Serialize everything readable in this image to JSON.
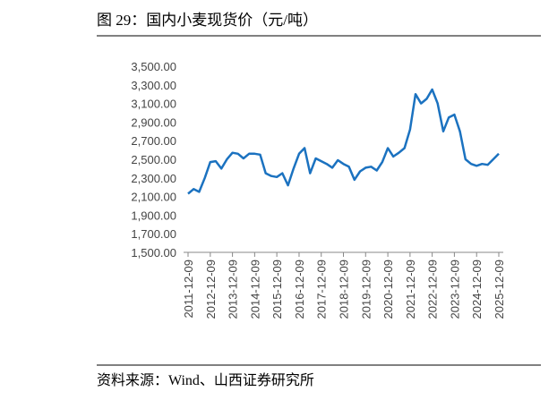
{
  "chart_data": {
    "type": "line",
    "title": "图 29：国内小麦现货价（元/吨）",
    "source": "资料来源：Wind、山西证券研究所",
    "x": [
      "2011-12-09",
      "2012-03-09",
      "2012-06-09",
      "2012-09-09",
      "2012-12-09",
      "2013-03-09",
      "2013-06-09",
      "2013-09-09",
      "2013-12-09",
      "2014-03-09",
      "2014-06-09",
      "2014-09-09",
      "2014-12-09",
      "2015-03-09",
      "2015-06-09",
      "2015-09-09",
      "2015-12-09",
      "2016-03-09",
      "2016-06-09",
      "2016-09-09",
      "2016-12-09",
      "2017-03-09",
      "2017-06-09",
      "2017-09-09",
      "2017-12-09",
      "2018-03-09",
      "2018-06-09",
      "2018-09-09",
      "2018-12-09",
      "2019-03-09",
      "2019-06-09",
      "2019-09-09",
      "2019-12-09",
      "2020-03-09",
      "2020-06-09",
      "2020-09-09",
      "2020-12-09",
      "2021-03-09",
      "2021-06-09",
      "2021-09-09",
      "2021-12-09",
      "2022-03-09",
      "2022-06-09",
      "2022-09-09",
      "2022-12-09",
      "2023-03-09",
      "2023-06-09",
      "2023-09-09",
      "2023-12-09",
      "2024-03-09",
      "2024-06-09",
      "2024-09-09",
      "2024-12-09",
      "2025-03-09",
      "2025-06-09",
      "2025-09-09",
      "2025-12-09"
    ],
    "series": [
      {
        "color": "#1b72c0",
        "values": [
          2130,
          2180,
          2150,
          2300,
          2470,
          2480,
          2400,
          2500,
          2570,
          2560,
          2510,
          2560,
          2560,
          2550,
          2350,
          2320,
          2310,
          2350,
          2220,
          2400,
          2560,
          2620,
          2350,
          2510,
          2480,
          2450,
          2410,
          2490,
          2450,
          2420,
          2280,
          2370,
          2410,
          2420,
          2380,
          2470,
          2620,
          2530,
          2570,
          2620,
          2820,
          3200,
          3100,
          3150,
          3250,
          3100,
          2800,
          2950,
          2980,
          2800,
          2500,
          2450,
          2430,
          2450,
          2440,
          2500,
          2560
        ]
      }
    ],
    "xticks": [
      "2011-12-09",
      "2012-12-09",
      "2013-12-09",
      "2014-12-09",
      "2015-12-09",
      "2016-12-09",
      "2017-12-09",
      "2018-12-09",
      "2019-12-09",
      "2020-12-09",
      "2021-12-09",
      "2022-12-09",
      "2023-12-09",
      "2024-12-09",
      "2025-12-09"
    ],
    "ylim": [
      1500,
      3500
    ],
    "yticks": [
      {
        "value": 1500,
        "label": "1,500.00"
      },
      {
        "value": 1700,
        "label": "1,700.00"
      },
      {
        "value": 1900,
        "label": "1,900.00"
      },
      {
        "value": 2100,
        "label": "2,100.00"
      },
      {
        "value": 2300,
        "label": "2,300.00"
      },
      {
        "value": 2500,
        "label": "2,500.00"
      },
      {
        "value": 2700,
        "label": "2,700.00"
      },
      {
        "value": 2900,
        "label": "2,900.00"
      },
      {
        "value": 3100,
        "label": "3,100.00"
      },
      {
        "value": 3300,
        "label": "3,300.00"
      },
      {
        "value": 3500,
        "label": "3,500.00"
      }
    ]
  }
}
